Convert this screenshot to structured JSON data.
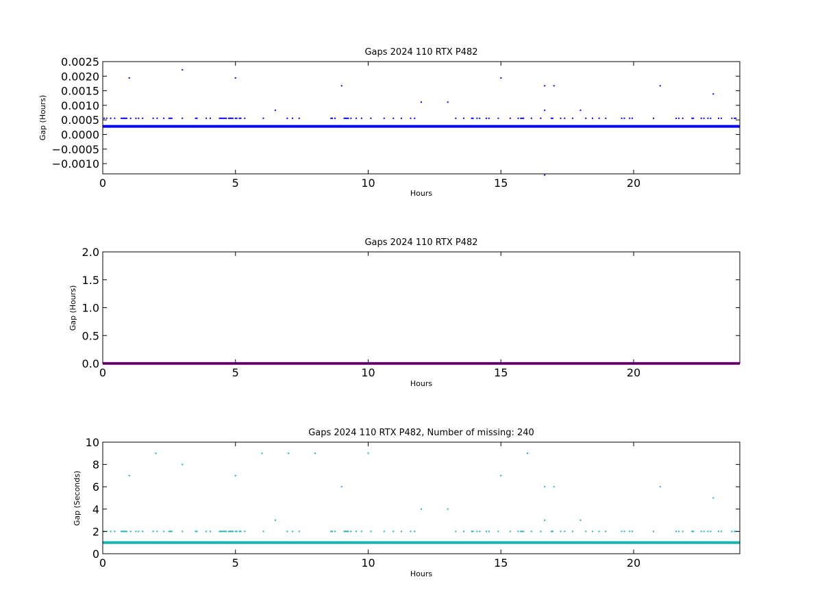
{
  "chart_data": [
    {
      "type": "scatter",
      "title": "Gaps 2024 110 RTX  P482",
      "xlabel": "Hours",
      "ylabel": "Gap (Hours)",
      "xlim": [
        0,
        24
      ],
      "ylim": [
        -0.00135,
        0.0025
      ],
      "xticks": [
        0,
        5,
        10,
        15,
        20
      ],
      "xtick_labels": [
        "0",
        "5",
        "10",
        "15",
        "20"
      ],
      "yticks": [
        -0.001,
        -0.0005,
        0.0,
        0.0005,
        0.001,
        0.0015,
        0.002,
        0.0025
      ],
      "ytick_labels": [
        "−0.0010",
        "−0.0005",
        "0.0000",
        "0.0005",
        "0.0010",
        "0.0015",
        "0.0020",
        "0.0025"
      ],
      "color": "#0000ff",
      "baseline": {
        "y": 0.000278,
        "x_range": [
          0,
          24
        ]
      },
      "series": [
        {
          "level": 0.000556,
          "x": [
            0.05,
            0.15,
            0.3,
            0.45,
            0.7,
            0.75,
            0.8,
            0.85,
            0.9,
            1.05,
            1.25,
            1.35,
            1.5,
            1.9,
            2.05,
            2.3,
            2.5,
            2.55,
            2.6,
            3.0,
            3.5,
            3.55,
            3.9,
            4.05,
            4.4,
            4.45,
            4.5,
            4.55,
            4.6,
            4.65,
            4.75,
            4.8,
            4.85,
            4.9,
            5.0,
            5.05,
            5.15,
            5.2,
            5.35,
            6.05,
            6.95,
            7.15,
            7.4,
            8.6,
            8.65,
            8.75,
            9.1,
            9.15,
            9.2,
            9.25,
            9.35,
            9.55,
            9.75,
            10.1,
            10.6,
            10.95,
            11.25,
            11.6,
            11.75,
            13.3,
            13.6,
            13.9,
            13.95,
            14.1,
            14.2,
            14.45,
            14.55,
            14.9,
            15.35,
            15.65,
            15.75,
            15.8,
            15.85,
            16.15,
            16.5,
            16.9,
            16.95,
            17.25,
            17.4,
            17.7,
            18.2,
            18.45,
            18.7,
            18.95,
            19.55,
            19.65,
            19.85,
            19.95,
            20.75,
            21.6,
            21.7,
            21.85,
            22.2,
            22.25,
            22.55,
            22.65,
            22.8,
            22.9,
            23.2,
            23.3,
            23.7,
            23.8,
            23.85
          ]
        },
        {
          "x": [
            1.0,
            3.0,
            5.0,
            6.5,
            9.0,
            12.0,
            13.0,
            15.0,
            16.65,
            16.65,
            17.0,
            18.0,
            21.0,
            23.0,
            16.65
          ],
          "y": [
            0.00194,
            0.00222,
            0.00194,
            0.00083,
            0.00167,
            0.00111,
            0.00111,
            0.00194,
            0.00167,
            0.00083,
            0.00167,
            0.00083,
            0.00167,
            0.00139,
            -0.00139
          ]
        }
      ]
    },
    {
      "type": "scatter",
      "title": "Gaps 2024 110 RTX  P482",
      "xlabel": "Hours",
      "ylabel": "Gap (Hours)",
      "xlim": [
        0,
        24
      ],
      "ylim": [
        0,
        2.0
      ],
      "xticks": [
        0,
        5,
        10,
        15,
        20
      ],
      "xtick_labels": [
        "0",
        "5",
        "10",
        "15",
        "20"
      ],
      "yticks": [
        0.0,
        0.5,
        1.0,
        1.5,
        2.0
      ],
      "ytick_labels": [
        "0.0",
        "0.5",
        "1.0",
        "1.5",
        "2.0"
      ],
      "color": "#aa00aa",
      "baseline": {
        "y": 0.0,
        "x_range": [
          0,
          24
        ]
      },
      "series": []
    },
    {
      "type": "scatter",
      "title": "Gaps 2024 110 RTX  P482, Number of missing: 240",
      "xlabel": "Hours",
      "ylabel": "Gap (Seconds)",
      "xlim": [
        0,
        24
      ],
      "ylim": [
        0,
        10
      ],
      "xticks": [
        0,
        5,
        10,
        15,
        20
      ],
      "xtick_labels": [
        "0",
        "5",
        "10",
        "15",
        "20"
      ],
      "yticks": [
        0,
        2,
        4,
        6,
        8,
        10
      ],
      "ytick_labels": [
        "0",
        "2",
        "4",
        "6",
        "8",
        "10"
      ],
      "color": "#1ab3b3",
      "baseline": {
        "y": 1.0,
        "x_range": [
          0,
          24
        ]
      },
      "series": [
        {
          "level": 2,
          "x": [
            0.05,
            0.15,
            0.3,
            0.45,
            0.7,
            0.75,
            0.8,
            0.85,
            0.9,
            1.05,
            1.25,
            1.35,
            1.5,
            1.9,
            2.05,
            2.3,
            2.5,
            2.55,
            2.6,
            3.0,
            3.5,
            3.55,
            3.9,
            4.05,
            4.4,
            4.45,
            4.5,
            4.55,
            4.6,
            4.65,
            4.75,
            4.8,
            4.85,
            4.9,
            5.0,
            5.05,
            5.15,
            5.2,
            5.35,
            6.05,
            6.95,
            7.15,
            7.4,
            8.6,
            8.65,
            8.75,
            9.1,
            9.15,
            9.2,
            9.25,
            9.35,
            9.55,
            9.75,
            10.1,
            10.6,
            10.95,
            11.25,
            11.6,
            11.75,
            13.3,
            13.6,
            13.9,
            13.95,
            14.1,
            14.2,
            14.45,
            14.55,
            14.9,
            15.35,
            15.65,
            15.75,
            15.8,
            15.85,
            16.15,
            16.5,
            16.9,
            16.95,
            17.25,
            17.4,
            17.7,
            18.2,
            18.45,
            18.7,
            18.95,
            19.55,
            19.65,
            19.85,
            19.95,
            20.75,
            21.6,
            21.7,
            21.85,
            22.2,
            22.25,
            22.55,
            22.65,
            22.8,
            22.9,
            23.2,
            23.3,
            23.7,
            23.8,
            23.85
          ]
        },
        {
          "x": [
            1.0,
            2.0,
            3.0,
            5.0,
            6.0,
            6.5,
            7.0,
            8.0,
            9.0,
            10.0,
            12.0,
            13.0,
            15.0,
            16.0,
            16.65,
            16.65,
            17.0,
            18.0,
            21.0,
            23.0
          ],
          "y": [
            7,
            9,
            8,
            7,
            9,
            3,
            9,
            9,
            6,
            9,
            4,
            4,
            7,
            9,
            6,
            3,
            6,
            3,
            6,
            5
          ]
        }
      ]
    }
  ]
}
